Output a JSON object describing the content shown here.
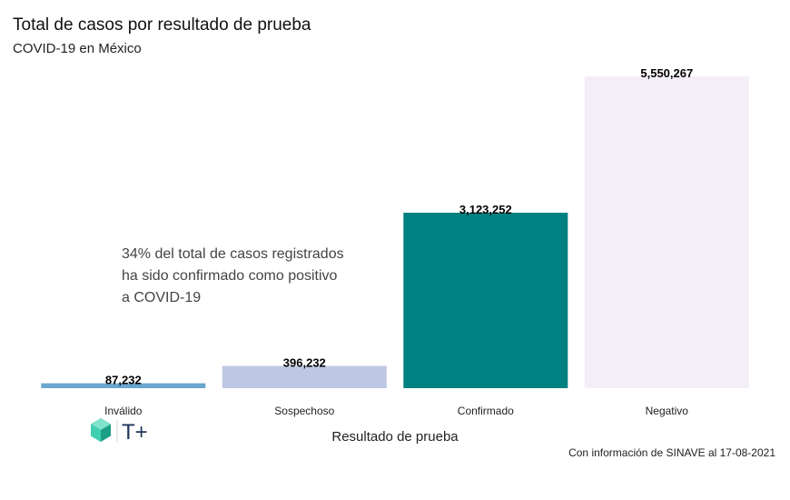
{
  "chart_data": {
    "type": "bar",
    "title": "Total de casos por resultado de prueba",
    "subtitle": "COVID-19 en México",
    "xlabel": "Resultado de prueba",
    "ylabel": "",
    "categories": [
      "Inválido",
      "Sospechoso",
      "Confirmado",
      "Negativo"
    ],
    "values": [
      87232,
      396232,
      3123252,
      5550267
    ],
    "value_labels": [
      "87,232",
      "396,232",
      "3,123,252",
      "5,550,267"
    ],
    "colors": [
      "#6aa6cf",
      "#bec8e2",
      "#008080",
      "#f4eef7"
    ],
    "ylim": [
      0,
      5550267
    ],
    "grid": false,
    "annotation": [
      "34% del total de casos registrados",
      "ha sido confirmado como positivo",
      "a COVID-19"
    ],
    "caption": "Con información de SINAVE al 17-08-2021"
  },
  "logo": {
    "icon": "hexagon-gem-icon",
    "text": "T+",
    "colors": [
      "#3fcfb0",
      "#1a9f86",
      "#1d3557"
    ]
  }
}
